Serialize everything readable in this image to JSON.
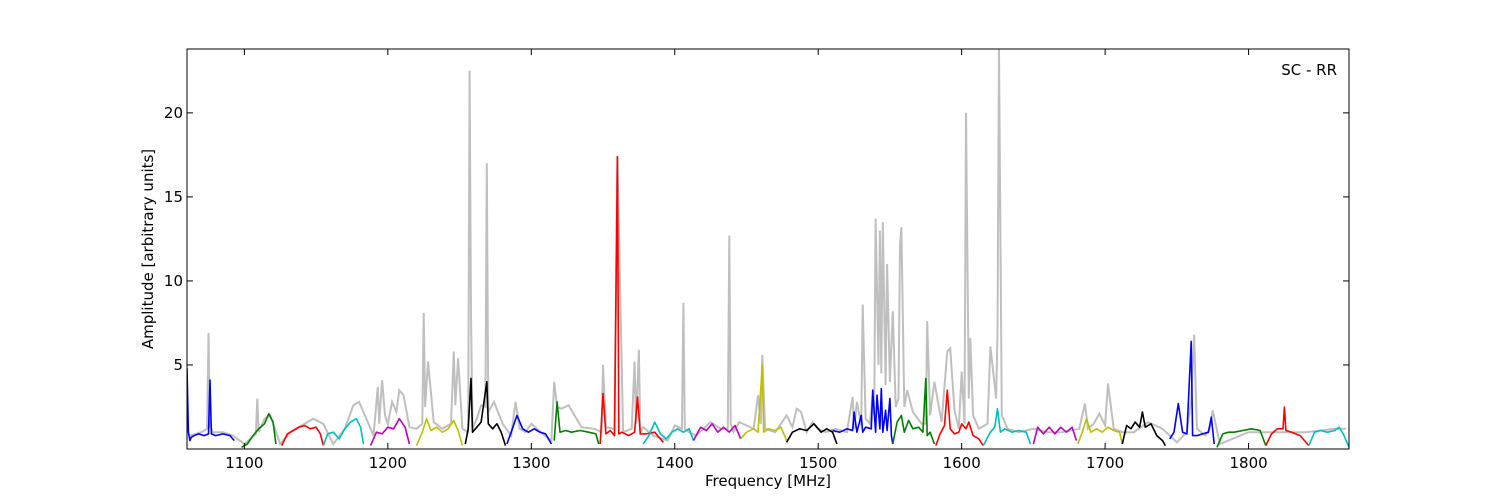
{
  "chart_data": {
    "type": "line",
    "title": "",
    "annotation": "SC - RR",
    "xlabel": "Frequency [MHz]",
    "ylabel": "Amplitude [arbitrary units]",
    "xlim": [
      1060,
      1870
    ],
    "ylim": [
      0,
      23.8
    ],
    "xticks": [
      1100,
      1200,
      1300,
      1400,
      1500,
      1600,
      1700,
      1800
    ],
    "yticks": [
      5,
      10,
      15,
      20
    ],
    "grid": false,
    "colors": {
      "background_raw": "#bfbfbf",
      "palette": [
        "#0000ff",
        "#008000",
        "#ff0000",
        "#00bfbf",
        "#bf00bf",
        "#bfbf00",
        "#000000"
      ]
    },
    "background_series": {
      "name": "",
      "color": "#bfbfbf",
      "x": [
        1062,
        1070,
        1074,
        1075,
        1076,
        1078,
        1085,
        1092,
        1100,
        1108,
        1109,
        1110,
        1114,
        1118,
        1125,
        1132,
        1140,
        1148,
        1155,
        1162,
        1170,
        1176,
        1180,
        1184,
        1190,
        1193,
        1194,
        1196,
        1198,
        1200,
        1203,
        1206,
        1208,
        1211,
        1215,
        1220,
        1224,
        1225,
        1226,
        1228,
        1232,
        1238,
        1244,
        1246,
        1247,
        1249,
        1252,
        1256,
        1257,
        1258,
        1259,
        1262,
        1265,
        1268,
        1269,
        1270,
        1274,
        1280,
        1286,
        1289,
        1292,
        1296,
        1300,
        1308,
        1314,
        1316,
        1318,
        1321,
        1326,
        1335,
        1344,
        1349,
        1350,
        1352,
        1358,
        1360,
        1364,
        1370,
        1372,
        1373,
        1375,
        1376,
        1378,
        1385,
        1395,
        1400,
        1405,
        1406,
        1407,
        1410,
        1415,
        1425,
        1432,
        1437,
        1438,
        1439,
        1441,
        1445,
        1450,
        1455,
        1458,
        1460,
        1461,
        1463,
        1470,
        1478,
        1482,
        1485,
        1488,
        1492,
        1496,
        1500,
        1505,
        1512,
        1520,
        1524,
        1525,
        1527,
        1530,
        1531,
        1533,
        1536,
        1538,
        1539,
        1540,
        1542,
        1543,
        1544,
        1545,
        1547,
        1548,
        1550,
        1552,
        1554,
        1556,
        1557,
        1558,
        1560,
        1562,
        1566,
        1572,
        1575,
        1576,
        1578,
        1581,
        1586,
        1590,
        1592,
        1595,
        1598,
        1600,
        1602,
        1603,
        1605,
        1606,
        1608,
        1612,
        1618,
        1620,
        1622,
        1624,
        1625,
        1626,
        1628,
        1632,
        1640,
        1650,
        1660,
        1670,
        1682,
        1686,
        1688,
        1692,
        1696,
        1700,
        1702,
        1706,
        1712,
        1720,
        1730,
        1740,
        1750,
        1757,
        1760,
        1762,
        1764,
        1770,
        1773,
        1775,
        1780,
        1800,
        1820,
        1840,
        1860,
        1868
      ],
      "y": [
        0.8,
        1.0,
        1.2,
        6.9,
        1.4,
        1.0,
        1.0,
        0.8,
        0.3,
        0.9,
        3.0,
        1.0,
        1.8,
        2.0,
        0.3,
        1.0,
        1.4,
        1.8,
        1.5,
        0.3,
        1.2,
        2.6,
        2.8,
        2.0,
        0.8,
        3.7,
        1.5,
        4.1,
        2.0,
        1.5,
        2.8,
        2.2,
        3.5,
        3.2,
        1.3,
        1.2,
        1.5,
        8.1,
        2.5,
        5.2,
        1.6,
        1.2,
        1.5,
        5.8,
        2.6,
        5.4,
        1.2,
        1.0,
        22.5,
        8.0,
        1.2,
        1.8,
        2.6,
        2.5,
        17.0,
        2.2,
        2.8,
        1.5,
        0.8,
        2.8,
        1.2,
        1.0,
        1.5,
        0.9,
        0.5,
        4.0,
        2.5,
        2.4,
        2.6,
        1.3,
        1.2,
        1.0,
        5.0,
        1.3,
        1.2,
        17.4,
        1.0,
        1.2,
        5.2,
        1.5,
        5.9,
        1.0,
        1.3,
        0.8,
        0.5,
        1.4,
        1.2,
        8.7,
        1.2,
        1.0,
        0.8,
        1.6,
        1.2,
        1.2,
        12.7,
        1.5,
        1.0,
        1.6,
        1.4,
        1.2,
        3.2,
        1.5,
        5.6,
        1.2,
        1.0,
        2.0,
        1.3,
        2.4,
        2.2,
        1.0,
        1.6,
        1.2,
        1.0,
        1.2,
        1.0,
        3.1,
        1.2,
        2.8,
        1.4,
        8.6,
        1.8,
        1.5,
        3.2,
        2.0,
        13.7,
        5.0,
        13.0,
        4.5,
        13.5,
        3.8,
        11.0,
        4.0,
        8.2,
        2.5,
        3.0,
        12.1,
        13.2,
        2.5,
        3.5,
        2.2,
        1.5,
        1.5,
        7.6,
        2.0,
        4.0,
        1.6,
        5.8,
        6.0,
        2.3,
        1.2,
        4.6,
        1.5,
        20.0,
        3.0,
        6.6,
        2.0,
        1.2,
        1.5,
        6.1,
        4.6,
        3.0,
        6.8,
        23.8,
        2.0,
        1.2,
        1.0,
        1.2,
        1.0,
        1.0,
        1.2,
        2.7,
        1.2,
        1.5,
        2.1,
        1.4,
        3.9,
        1.2,
        1.0,
        1.0,
        1.6,
        1.2,
        0.4,
        1.0,
        2.9,
        6.8,
        1.2,
        0.8,
        1.2,
        2.3,
        0.3,
        1.0,
        1.0,
        1.0,
        1.2,
        1.2
      ]
    },
    "series": [
      {
        "color": "#0000ff",
        "x": [
          1060,
          1061,
          1062,
          1063,
          1065,
          1068,
          1072,
          1075,
          1076,
          1077,
          1080,
          1085,
          1090,
          1093
        ],
        "y": [
          4.8,
          1.0,
          0.5,
          0.7,
          0.8,
          0.9,
          0.8,
          0.9,
          4.1,
          0.9,
          0.8,
          0.9,
          0.8,
          0.5
        ]
      },
      {
        "color": "#008000",
        "x": [
          1098,
          1102,
          1106,
          1110,
          1114,
          1117,
          1120,
          1122
        ],
        "y": [
          0.1,
          0.3,
          0.8,
          1.2,
          1.5,
          2.1,
          1.6,
          0.3
        ]
      },
      {
        "color": "#ff0000",
        "x": [
          1126,
          1130,
          1134,
          1138,
          1142,
          1146,
          1150,
          1153,
          1155
        ],
        "y": [
          0.2,
          0.9,
          1.1,
          1.3,
          1.4,
          1.2,
          1.3,
          0.9,
          0.2
        ]
      },
      {
        "color": "#00bfbf",
        "x": [
          1155,
          1158,
          1162,
          1166,
          1170,
          1174,
          1178,
          1181,
          1183
        ],
        "y": [
          0.2,
          0.9,
          1.0,
          0.6,
          1.2,
          1.6,
          1.8,
          1.3,
          0.3
        ]
      },
      {
        "color": "#bf00bf",
        "x": [
          1188,
          1192,
          1196,
          1200,
          1204,
          1208,
          1212,
          1215
        ],
        "y": [
          0.2,
          1.0,
          0.9,
          1.3,
          1.2,
          1.8,
          1.3,
          0.3
        ]
      },
      {
        "color": "#bfbf00",
        "x": [
          1220,
          1224,
          1227,
          1230,
          1234,
          1238,
          1242,
          1246,
          1249,
          1252
        ],
        "y": [
          0.2,
          1.0,
          1.8,
          1.1,
          1.3,
          1.0,
          1.2,
          1.7,
          1.1,
          0.2
        ]
      },
      {
        "color": "#000000",
        "x": [
          1254,
          1256,
          1258,
          1259,
          1262,
          1265,
          1269,
          1270,
          1273,
          1276,
          1279,
          1282
        ],
        "y": [
          0.3,
          1.2,
          4.2,
          1.0,
          1.3,
          1.6,
          4.0,
          1.5,
          1.2,
          1.5,
          1.0,
          0.2
        ]
      },
      {
        "color": "#0000ff",
        "x": [
          1283,
          1286,
          1290,
          1294,
          1298,
          1302,
          1306,
          1310,
          1314
        ],
        "y": [
          0.3,
          1.0,
          2.0,
          1.2,
          1.0,
          1.2,
          1.0,
          0.9,
          0.3
        ]
      },
      {
        "color": "#008000",
        "x": [
          1316,
          1318,
          1320,
          1324,
          1328,
          1334,
          1340,
          1345,
          1347
        ],
        "y": [
          0.5,
          2.8,
          1.0,
          1.1,
          1.0,
          1.1,
          1.0,
          0.9,
          0.3
        ]
      },
      {
        "color": "#ff0000",
        "x": [
          1348,
          1350,
          1352,
          1355,
          1358,
          1360,
          1361,
          1363,
          1368,
          1372,
          1374,
          1376,
          1380,
          1386,
          1392
        ],
        "y": [
          0.3,
          3.3,
          0.9,
          1.1,
          0.8,
          17.4,
          0.9,
          1.0,
          0.8,
          1.0,
          3.1,
          0.9,
          0.9,
          1.0,
          0.4
        ]
      },
      {
        "color": "#00bfbf",
        "x": [
          1378,
          1382,
          1386,
          1390,
          1394,
          1398,
          1402,
          1406,
          1410,
          1413
        ],
        "y": [
          0.3,
          0.8,
          1.6,
          0.9,
          0.6,
          1.0,
          1.2,
          1.0,
          1.2,
          0.5
        ]
      },
      {
        "color": "#bf00bf",
        "x": [
          1413,
          1418,
          1422,
          1426,
          1430,
          1434,
          1438,
          1442,
          1446
        ],
        "y": [
          0.5,
          1.3,
          1.1,
          1.5,
          1.0,
          1.3,
          1.0,
          1.4,
          0.6
        ]
      },
      {
        "color": "#bfbf00",
        "x": [
          1446,
          1450,
          1455,
          1458,
          1461,
          1462,
          1465,
          1470,
          1474,
          1478
        ],
        "y": [
          0.6,
          1.0,
          1.2,
          1.0,
          5.0,
          1.0,
          1.2,
          1.1,
          1.3,
          0.5
        ]
      },
      {
        "color": "#000000",
        "x": [
          1478,
          1482,
          1487,
          1492,
          1497,
          1502,
          1506,
          1510,
          1513
        ],
        "y": [
          0.4,
          1.0,
          1.2,
          1.1,
          1.5,
          1.0,
          1.2,
          1.0,
          0.3
        ]
      },
      {
        "color": "#0000ff",
        "x": [
          1510,
          1515,
          1520,
          1524,
          1525,
          1527,
          1530,
          1531,
          1533,
          1537,
          1538,
          1540,
          1541,
          1543,
          1544,
          1545,
          1547,
          1548,
          1550,
          1551,
          1552
        ],
        "y": [
          1.1,
          1.0,
          1.2,
          1.1,
          2.2,
          1.0,
          2.0,
          1.0,
          1.3,
          1.2,
          3.5,
          1.0,
          3.2,
          1.2,
          3.6,
          1.0,
          2.3,
          1.1,
          3.0,
          0.8,
          0.3
        ]
      },
      {
        "color": "#008000",
        "x": [
          1552,
          1555,
          1558,
          1560,
          1563,
          1566,
          1570,
          1573,
          1575,
          1576,
          1578,
          1581
        ],
        "y": [
          0.3,
          1.6,
          2.0,
          1.0,
          1.7,
          1.2,
          1.3,
          1.0,
          4.2,
          0.8,
          1.0,
          0.3
        ]
      },
      {
        "color": "#ff0000",
        "x": [
          1582,
          1585,
          1588,
          1590,
          1592,
          1595,
          1598,
          1600,
          1603,
          1605,
          1608,
          1612,
          1615
        ],
        "y": [
          0.2,
          0.9,
          1.4,
          3.5,
          1.2,
          0.9,
          1.0,
          1.5,
          1.2,
          1.6,
          0.8,
          0.6,
          0.2
        ]
      },
      {
        "color": "#00bfbf",
        "x": [
          1615,
          1620,
          1623,
          1625,
          1627,
          1630,
          1635,
          1640,
          1645,
          1648
        ],
        "y": [
          0.2,
          1.0,
          1.3,
          2.4,
          1.0,
          1.2,
          1.0,
          1.1,
          1.0,
          0.3
        ]
      },
      {
        "color": "#bf00bf",
        "x": [
          1650,
          1653,
          1657,
          1661,
          1665,
          1669,
          1673,
          1677,
          1680
        ],
        "y": [
          0.3,
          1.3,
          0.9,
          1.3,
          0.9,
          1.3,
          1.0,
          1.3,
          0.5
        ]
      },
      {
        "color": "#bfbf00",
        "x": [
          1681,
          1684,
          1687,
          1690,
          1694,
          1698,
          1702,
          1706,
          1710,
          1712
        ],
        "y": [
          0.3,
          1.0,
          1.8,
          1.0,
          1.2,
          1.0,
          1.3,
          1.1,
          1.0,
          0.3
        ]
      },
      {
        "color": "#000000",
        "x": [
          1712,
          1715,
          1718,
          1721,
          1724,
          1726,
          1728,
          1732,
          1736,
          1740,
          1742
        ],
        "y": [
          0.3,
          1.4,
          1.2,
          1.6,
          1.3,
          2.2,
          1.3,
          1.5,
          0.8,
          0.5,
          0.2
        ]
      },
      {
        "color": "#0000ff",
        "x": [
          1745,
          1748,
          1751,
          1754,
          1757,
          1760,
          1761,
          1764,
          1768,
          1772,
          1774,
          1776
        ],
        "y": [
          0.6,
          1.0,
          2.7,
          1.0,
          0.9,
          6.4,
          0.8,
          0.8,
          0.9,
          1.0,
          1.9,
          0.3
        ]
      },
      {
        "color": "#008000",
        "x": [
          1778,
          1782,
          1786,
          1790,
          1796,
          1802,
          1808,
          1812
        ],
        "y": [
          0.1,
          0.9,
          1.0,
          1.0,
          1.1,
          1.2,
          1.1,
          0.2
        ]
      },
      {
        "color": "#ff0000",
        "x": [
          1812,
          1816,
          1820,
          1824,
          1825,
          1826,
          1830,
          1836,
          1842
        ],
        "y": [
          0.2,
          0.9,
          1.2,
          1.2,
          2.5,
          1.1,
          1.0,
          0.8,
          0.2
        ]
      },
      {
        "color": "#00bfbf",
        "x": [
          1842,
          1846,
          1850,
          1855,
          1860,
          1863,
          1866,
          1870
        ],
        "y": [
          0.2,
          1.0,
          1.1,
          1.0,
          1.1,
          1.3,
          0.9,
          0.1
        ]
      }
    ]
  }
}
